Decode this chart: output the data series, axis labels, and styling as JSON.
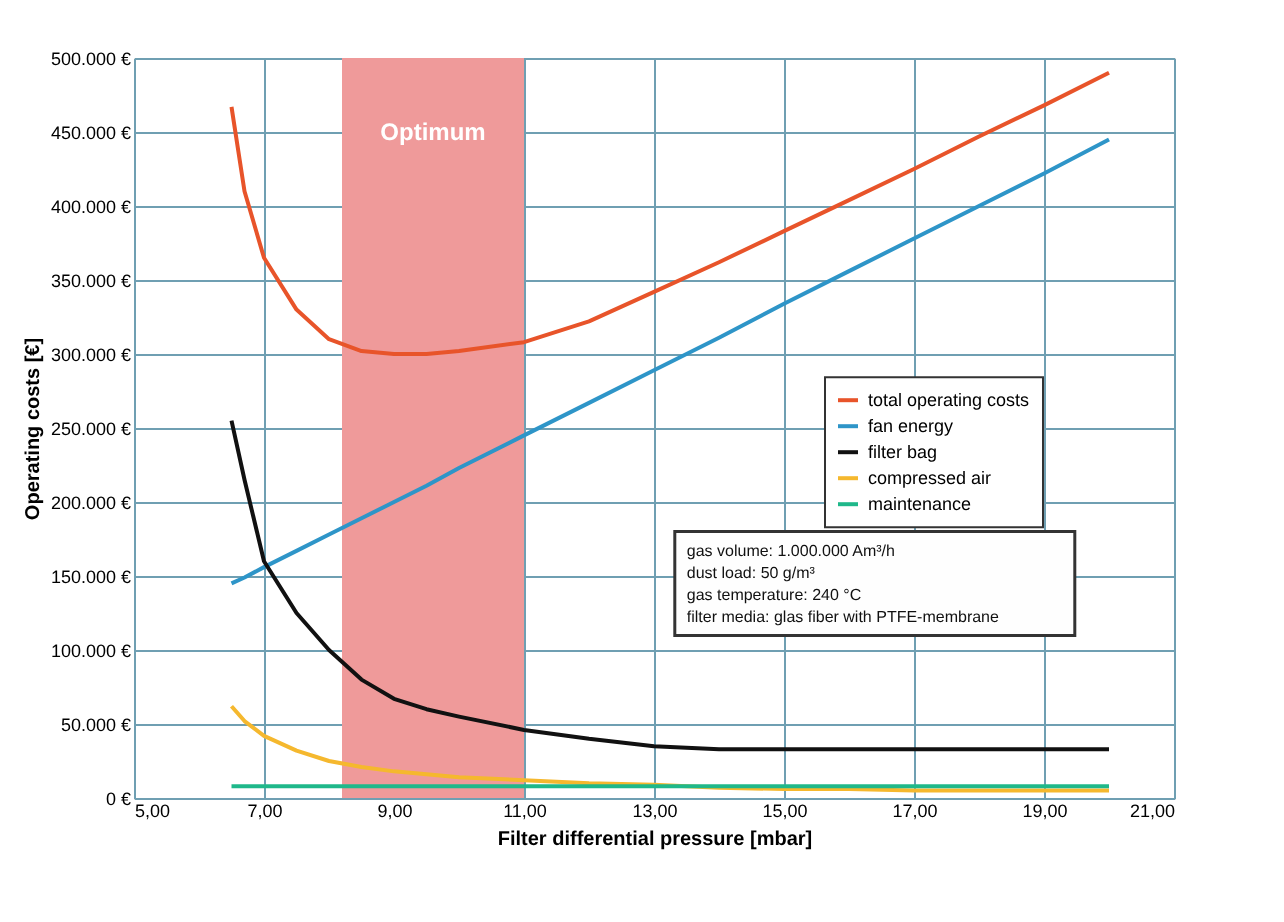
{
  "chart_data": {
    "type": "line",
    "xlabel": "Filter differential pressure [mbar]",
    "ylabel": "Operating costs [€]",
    "x": [
      6.5,
      6.7,
      7.0,
      7.5,
      8.0,
      8.5,
      9.0,
      9.5,
      10,
      11,
      12,
      13,
      14,
      15,
      16,
      17,
      18,
      19,
      20
    ],
    "series": [
      {
        "name": "total operating costs",
        "color": "#e8542a",
        "values": [
          467000,
          410000,
          365000,
          330000,
          310000,
          302000,
          300000,
          300000,
          302000,
          308000,
          322000,
          342000,
          362000,
          383000,
          404000,
          425000,
          447000,
          468000,
          490000
        ]
      },
      {
        "name": "fan energy",
        "color": "#2e95c8",
        "values": [
          145000,
          149000,
          156000,
          167000,
          178000,
          189000,
          200000,
          211000,
          223000,
          245000,
          267000,
          289000,
          311000,
          334000,
          356000,
          378000,
          400000,
          422000,
          445000
        ]
      },
      {
        "name": "filter bag",
        "color": "#111111",
        "values": [
          255000,
          215000,
          160000,
          125000,
          100000,
          80000,
          67000,
          60000,
          55000,
          46000,
          40000,
          35000,
          33000,
          33000,
          33000,
          33000,
          33000,
          33000,
          33000
        ]
      },
      {
        "name": "compressed air",
        "color": "#f5b82e",
        "values": [
          62000,
          52000,
          42000,
          32000,
          25000,
          21000,
          18000,
          16000,
          14000,
          12000,
          10000,
          9000,
          7000,
          6000,
          6000,
          5000,
          5000,
          5000,
          5000
        ]
      },
      {
        "name": "maintenance",
        "color": "#1fb88a",
        "values": [
          8000,
          8000,
          8000,
          8000,
          8000,
          8000,
          8000,
          8000,
          8000,
          8000,
          8000,
          8000,
          8000,
          8000,
          8000,
          8000,
          8000,
          8000,
          8000
        ]
      }
    ],
    "xlim": [
      5,
      21
    ],
    "xticks": [
      {
        "value": 5,
        "label": "5,00"
      },
      {
        "value": 7,
        "label": "7,00"
      },
      {
        "value": 9,
        "label": "9,00"
      },
      {
        "value": 11,
        "label": "11,00"
      },
      {
        "value": 13,
        "label": "13,00"
      },
      {
        "value": 15,
        "label": "15,00"
      },
      {
        "value": 17,
        "label": "17,00"
      },
      {
        "value": 19,
        "label": "19,00"
      },
      {
        "value": 21,
        "label": "21,00"
      }
    ],
    "ylim": [
      0,
      500000
    ],
    "yticks": [
      {
        "value": 0,
        "label": "0 €"
      },
      {
        "value": 50000,
        "label": "50.000 €"
      },
      {
        "value": 100000,
        "label": "100.000 €"
      },
      {
        "value": 150000,
        "label": "150.000 €"
      },
      {
        "value": 200000,
        "label": "200.000 €"
      },
      {
        "value": 250000,
        "label": "250.000 €"
      },
      {
        "value": 300000,
        "label": "300.000 €"
      },
      {
        "value": 350000,
        "label": "350.000 €"
      },
      {
        "value": 400000,
        "label": "400.000 €"
      },
      {
        "value": 450000,
        "label": "450.000 €"
      },
      {
        "value": 500000,
        "label": "500.000 €"
      }
    ],
    "bands": [
      {
        "axis": "x",
        "from": 8.2,
        "to": 11.0,
        "label": "Optimum",
        "color": "#ef9a9a"
      }
    ],
    "annotations": [
      "gas volume: 1.000.000 Am³/h",
      "dust load: 50 g/m³",
      "gas temperature: 240 °C",
      "filter media: glas fiber with PTFE-membrane"
    ],
    "grid": true,
    "legend": "right",
    "line_style": "solid",
    "marker": "none"
  }
}
